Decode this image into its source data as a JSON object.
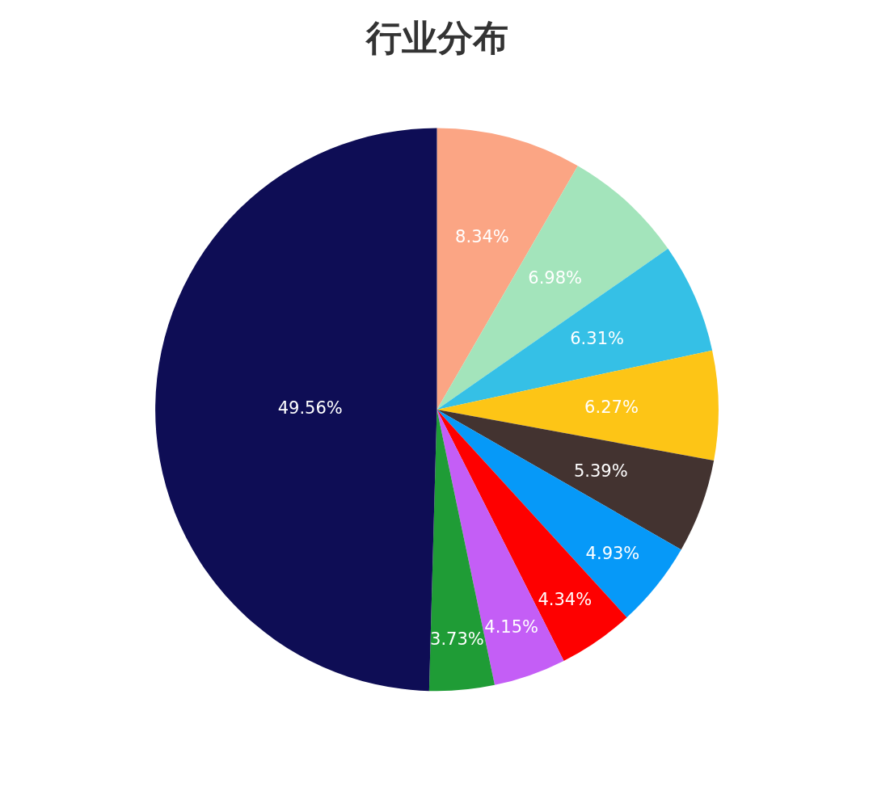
{
  "chart_data": {
    "type": "pie",
    "title": "行业分布",
    "categories": [
      null,
      null,
      null,
      null,
      null,
      null,
      null,
      null,
      null,
      null
    ],
    "values": [
      8.34,
      6.98,
      6.31,
      6.27,
      5.39,
      4.93,
      4.34,
      4.15,
      3.73,
      49.56
    ],
    "colors": [
      "#fba584",
      "#a3e4bb",
      "#35c0e6",
      "#fdc516",
      "#433330",
      "#0699f8",
      "#fe0000",
      "#c45ef6",
      "#1f9c36",
      "#0e0d55"
    ],
    "value_labels": [
      "8.34%",
      "6.98%",
      "6.31%",
      "6.27%",
      "5.39%",
      "4.93%",
      "4.34%",
      "4.15%",
      "3.73%",
      "49.56%"
    ]
  }
}
